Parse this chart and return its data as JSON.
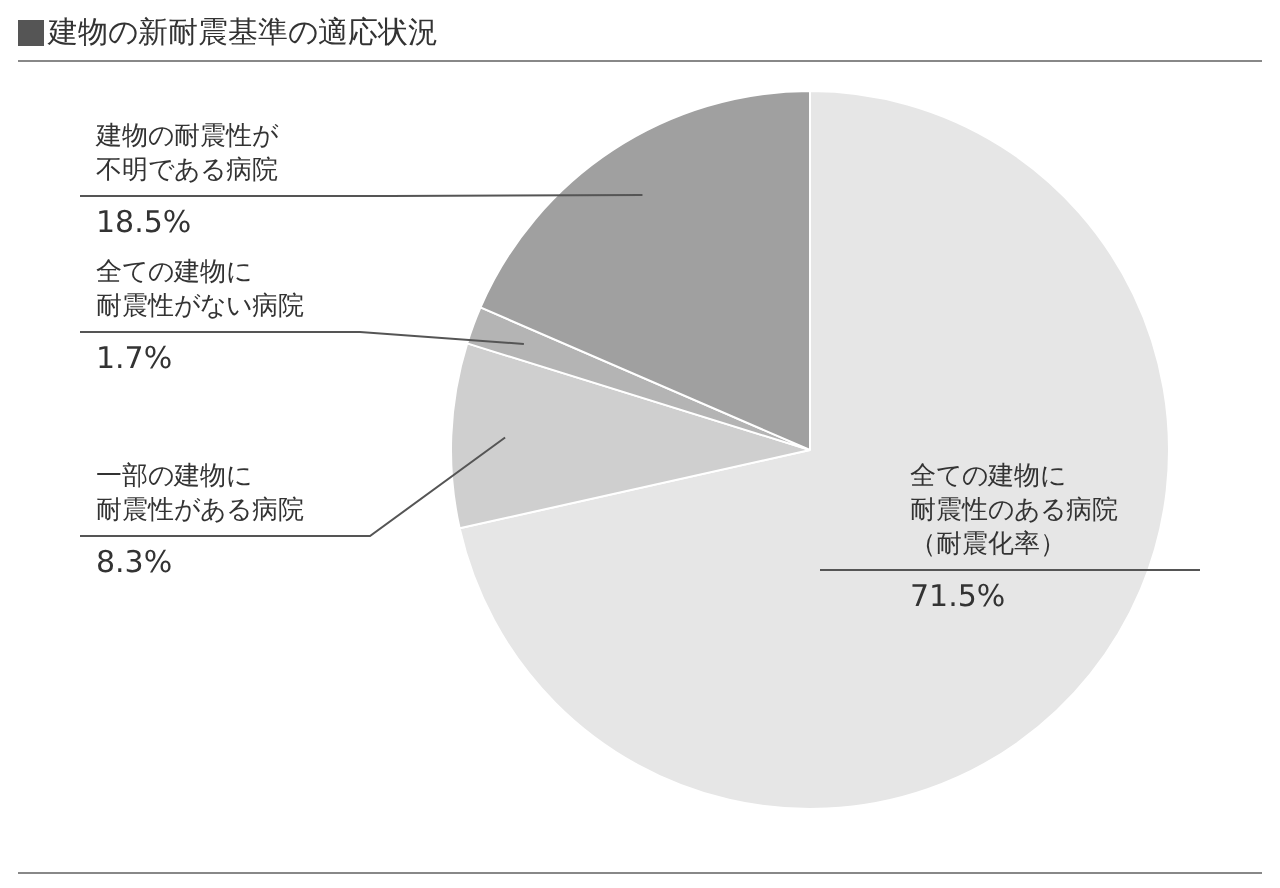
{
  "chart_data": {
    "type": "pie",
    "title": "建物の新耐震基準の適応状況",
    "categories": [
      "全ての建物に耐震性のある病院（耐震化率）",
      "一部の建物に耐震性がある病院",
      "全ての建物に耐震性がない病院",
      "建物の耐震性が不明である病院"
    ],
    "values": [
      71.5,
      8.3,
      1.7,
      18.5
    ],
    "value_labels": [
      "71.5%",
      "8.3%",
      "1.7%",
      "18.5%"
    ],
    "colors": [
      "#e6e6e6",
      "#cfcfcf",
      "#b4b4b4",
      "#a0a0a0"
    ],
    "legend": false
  }
}
